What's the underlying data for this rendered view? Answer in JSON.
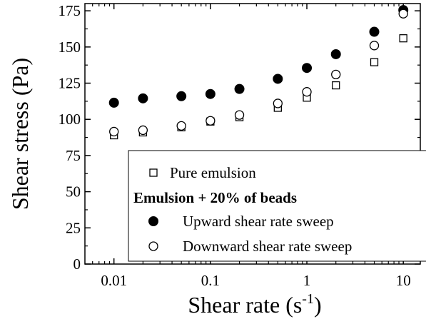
{
  "chart_data": {
    "type": "scatter",
    "xscale": "log",
    "xlim": [
      0.005,
      15
    ],
    "ylim": [
      0,
      180
    ],
    "xlabel": "Shear rate (s",
    "xlabel_sup": "-1",
    "xlabel_close": ")",
    "ylabel": "Shear stress (Pa)",
    "xticks": [
      {
        "value": 0.01,
        "label": "0.01"
      },
      {
        "value": 0.1,
        "label": "0.1"
      },
      {
        "value": 1,
        "label": "1"
      },
      {
        "value": 10,
        "label": "10"
      }
    ],
    "yticks": [
      {
        "value": 0,
        "label": "0"
      },
      {
        "value": 25,
        "label": "25"
      },
      {
        "value": 50,
        "label": "50"
      },
      {
        "value": 75,
        "label": "75"
      },
      {
        "value": 100,
        "label": "100"
      },
      {
        "value": 125,
        "label": "125"
      },
      {
        "value": 150,
        "label": "150"
      },
      {
        "value": 175,
        "label": "175"
      }
    ],
    "legend": {
      "placement": "bottom-right",
      "heading": "Emulsion + 20% of beads"
    },
    "series": [
      {
        "name": "Pure emulsion",
        "marker": "open-square",
        "x": [
          0.01,
          0.02,
          0.05,
          0.1,
          0.2,
          0.5,
          1,
          2,
          5,
          10
        ],
        "y": [
          89,
          91,
          94.5,
          98.5,
          101.5,
          108,
          115,
          123.5,
          139.5,
          156
        ]
      },
      {
        "name": "Upward shear rate sweep",
        "marker": "filled-circle",
        "x": [
          0.01,
          0.02,
          0.05,
          0.1,
          0.2,
          0.5,
          1,
          2,
          5,
          10
        ],
        "y": [
          111.5,
          114.5,
          116,
          117.5,
          121,
          128,
          135.5,
          145,
          160.5,
          175.5
        ]
      },
      {
        "name": "Downward shear rate sweep",
        "marker": "open-circle",
        "x": [
          0.01,
          0.02,
          0.05,
          0.1,
          0.2,
          0.5,
          1,
          2,
          5,
          10
        ],
        "y": [
          91.5,
          92.5,
          95.5,
          99,
          103,
          111,
          119,
          131,
          151,
          173
        ]
      }
    ]
  }
}
